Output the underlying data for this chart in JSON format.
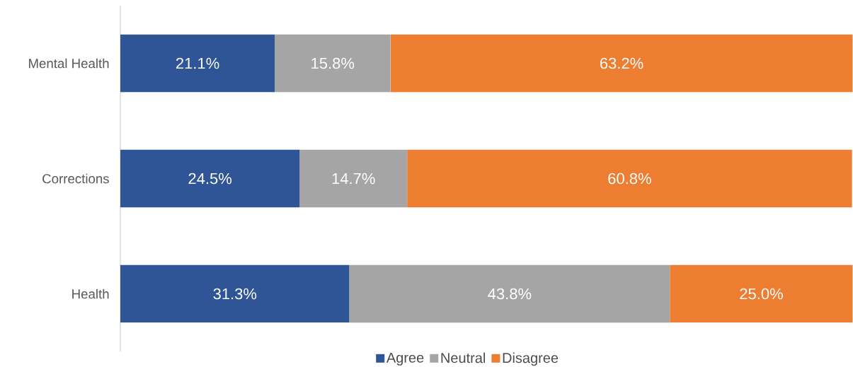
{
  "chart_data": {
    "type": "bar",
    "orientation": "horizontal",
    "stacked": true,
    "categories": [
      "Mental Health",
      "Corrections",
      "Health"
    ],
    "series": [
      {
        "name": "Agree",
        "color": "#2f5597",
        "values": [
          21.1,
          24.5,
          31.3
        ],
        "value_labels": [
          "21.1%",
          "24.5%",
          "31.3%"
        ]
      },
      {
        "name": "Neutral",
        "color": "#a5a5a5",
        "values": [
          15.8,
          14.7,
          43.8
        ],
        "value_labels": [
          "15.8%",
          "14.7%",
          "43.8%"
        ]
      },
      {
        "name": "Disagree",
        "color": "#ed7d31",
        "values": [
          63.2,
          60.8,
          25.0
        ],
        "value_labels": [
          "63.2%",
          "60.8%",
          "25.0%"
        ]
      }
    ],
    "tick_labels": "y",
    "grid": false,
    "legend": "bottom"
  }
}
